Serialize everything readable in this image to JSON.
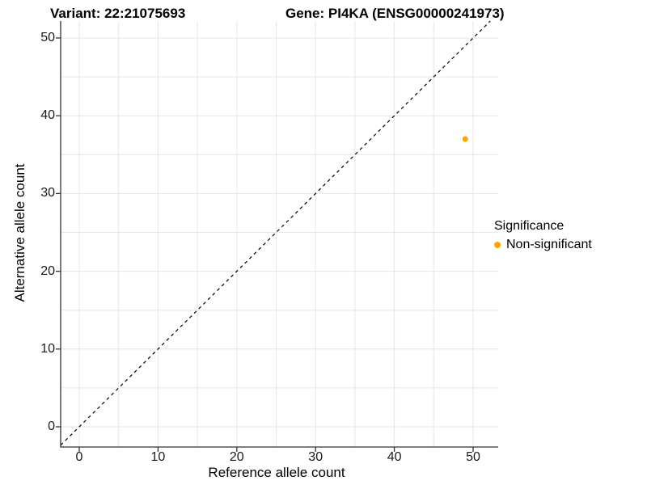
{
  "chart_data": {
    "type": "scatter",
    "title_left": "Variant: 22:21075693",
    "title_right": "Gene: PI4KA (ENSG00000241973)",
    "xlabel": "Reference allele count",
    "ylabel": "Alternative allele count",
    "xlim": [
      0,
      50
    ],
    "ylim": [
      0,
      50
    ],
    "x_ticks": [
      0,
      10,
      20,
      30,
      40,
      50
    ],
    "y_ticks": [
      0,
      10,
      20,
      30,
      40,
      50
    ],
    "grid": true,
    "grid_step": 5,
    "grid_color": "#e6e6e6",
    "axis_color": "#333333",
    "reference_line": {
      "equation": "y = x",
      "style": "dashed",
      "color": "#000000"
    },
    "series": [
      {
        "name": "Non-significant",
        "color": "#FFA500",
        "points": [
          {
            "x": 49,
            "y": 37
          }
        ]
      }
    ],
    "legend": {
      "title": "Significance",
      "position": "right",
      "entries": [
        {
          "label": "Non-significant",
          "color": "#FFA500"
        }
      ]
    }
  }
}
